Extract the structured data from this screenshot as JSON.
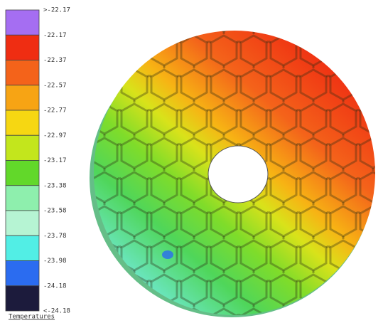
{
  "legend": {
    "labels": [
      ">-22.17",
      "-22.17",
      "-22.37",
      "-22.57",
      "-22.77",
      "-22.97",
      "-23.17",
      "-23.38",
      "-23.58",
      "-23.78",
      "-23.98",
      "-24.18",
      "<-24.18"
    ],
    "colors": [
      "#a56ef2",
      "#ef2d12",
      "#f4631a",
      "#f7a414",
      "#f6d712",
      "#c3e61c",
      "#62d82a",
      "#8eefad",
      "#b6f4d3",
      "#52eee5",
      "#2b6cf0",
      "#1c1b3c"
    ]
  },
  "caption": "Temperatures"
}
